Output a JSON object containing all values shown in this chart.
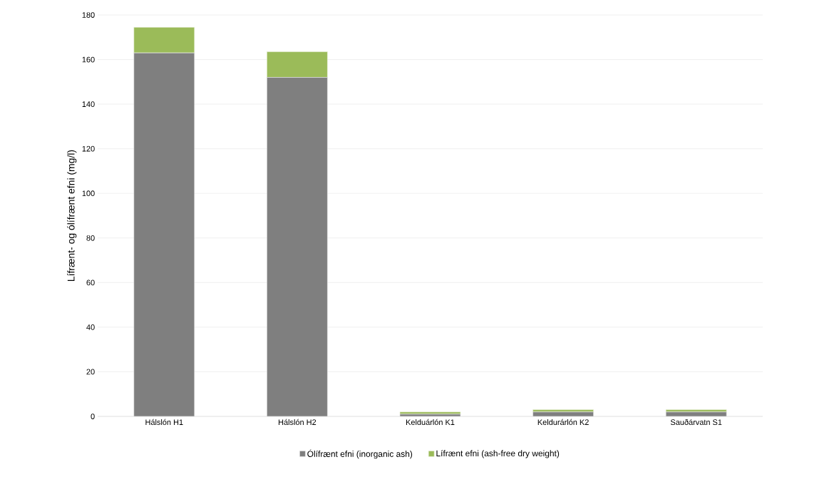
{
  "chart_data": {
    "type": "bar",
    "stacked": true,
    "ylabel": "Lífrænt- og ólífrænt efni (mg/l)",
    "categories": [
      "Hálslón H1",
      "Hálslón H2",
      "Kelduárlón K1",
      "Keldurárlón K2",
      "Sauðárvatn S1"
    ],
    "series": [
      {
        "name": "Ólífrænt efni (inorganic ash)",
        "color": "#7f7f7f",
        "values": [
          163,
          152,
          1,
          2,
          2
        ]
      },
      {
        "name": "Lífrænt efni (ash-free dry weight)",
        "color": "#9bbb59",
        "values": [
          11.5,
          11.5,
          1,
          1,
          1
        ]
      }
    ],
    "ylim": [
      0,
      180
    ],
    "yticks": [
      0,
      20,
      40,
      60,
      80,
      100,
      120,
      140,
      160,
      180
    ],
    "grid": "y",
    "legend": "bottom"
  }
}
